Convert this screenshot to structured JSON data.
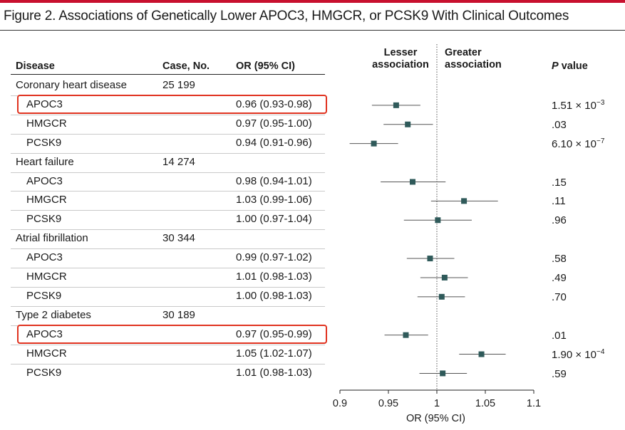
{
  "title": "Figure 2. Associations of Genetically Lower APOC3, HMGCR, or PCSK9 With Clinical Outcomes",
  "columns": {
    "disease": "Disease",
    "cases": "Case, No.",
    "or": "OR (95% CI)",
    "lesser_1": "Lesser",
    "lesser_2": "association",
    "greater_1": "Greater",
    "greater_2": "association",
    "p_value_italic": "P",
    "p_value_rest": " value"
  },
  "accent_color": "#c8102e",
  "highlight_color": "#e0321f",
  "marker_color": "#2f5a5a",
  "rows": [
    {
      "label": "Coronary heart disease",
      "cases": "25 199",
      "ci": "",
      "p_base": "",
      "p_exp": ""
    },
    {
      "label": "APOC3",
      "cases": "",
      "ci": "0.96 (0.93-0.98)",
      "p_base": "1.51 × 10",
      "p_exp": "−3"
    },
    {
      "label": "HMGCR",
      "cases": "",
      "ci": "0.97 (0.95-1.00)",
      "p_base": ".03",
      "p_exp": ""
    },
    {
      "label": "PCSK9",
      "cases": "",
      "ci": "0.94 (0.91-0.96)",
      "p_base": "6.10 × 10",
      "p_exp": "−7"
    },
    {
      "label": "Heart failure",
      "cases": "14 274",
      "ci": "",
      "p_base": "",
      "p_exp": ""
    },
    {
      "label": "APOC3",
      "cases": "",
      "ci": "0.98 (0.94-1.01)",
      "p_base": ".15",
      "p_exp": ""
    },
    {
      "label": "HMGCR",
      "cases": "",
      "ci": "1.03 (0.99-1.06)",
      "p_base": ".11",
      "p_exp": ""
    },
    {
      "label": "PCSK9",
      "cases": "",
      "ci": "1.00 (0.97-1.04)",
      "p_base": ".96",
      "p_exp": ""
    },
    {
      "label": "Atrial fibrillation",
      "cases": "30 344",
      "ci": "",
      "p_base": "",
      "p_exp": ""
    },
    {
      "label": "APOC3",
      "cases": "",
      "ci": "0.99 (0.97-1.02)",
      "p_base": ".58",
      "p_exp": ""
    },
    {
      "label": "HMGCR",
      "cases": "",
      "ci": "1.01 (0.98-1.03)",
      "p_base": ".49",
      "p_exp": ""
    },
    {
      "label": "PCSK9",
      "cases": "",
      "ci": "1.00 (0.98-1.03)",
      "p_base": ".70",
      "p_exp": ""
    },
    {
      "label": "Type 2 diabetes",
      "cases": "30 189",
      "ci": "",
      "p_base": "",
      "p_exp": ""
    },
    {
      "label": "APOC3",
      "cases": "",
      "ci": "0.97 (0.95-0.99)",
      "p_base": ".01",
      "p_exp": ""
    },
    {
      "label": "HMGCR",
      "cases": "",
      "ci": "1.05 (1.02-1.07)",
      "p_base": "1.90 × 10",
      "p_exp": "−4"
    },
    {
      "label": "PCSK9",
      "cases": "",
      "ci": "1.01 (0.98-1.03)",
      "p_base": ".59",
      "p_exp": ""
    }
  ],
  "chart_data": {
    "type": "scatter",
    "subtype": "forest plot",
    "xlabel": "OR (95% CI)",
    "xlim": [
      0.9,
      1.1
    ],
    "xticks": [
      "0.9",
      "0.95",
      "1",
      "1.05",
      "1.1"
    ],
    "reference_line": 1,
    "points": [
      {
        "row": 1,
        "or": 0.958,
        "lo": 0.933,
        "hi": 0.983
      },
      {
        "row": 2,
        "or": 0.97,
        "lo": 0.945,
        "hi": 0.996
      },
      {
        "row": 3,
        "or": 0.935,
        "lo": 0.91,
        "hi": 0.96
      },
      {
        "row": 5,
        "or": 0.975,
        "lo": 0.942,
        "hi": 1.009
      },
      {
        "row": 6,
        "or": 1.028,
        "lo": 0.994,
        "hi": 1.063
      },
      {
        "row": 7,
        "or": 1.001,
        "lo": 0.966,
        "hi": 1.036
      },
      {
        "row": 9,
        "or": 0.993,
        "lo": 0.969,
        "hi": 1.018
      },
      {
        "row": 10,
        "or": 1.008,
        "lo": 0.983,
        "hi": 1.032
      },
      {
        "row": 11,
        "or": 1.005,
        "lo": 0.98,
        "hi": 1.029
      },
      {
        "row": 13,
        "or": 0.968,
        "lo": 0.946,
        "hi": 0.991
      },
      {
        "row": 14,
        "or": 1.046,
        "lo": 1.023,
        "hi": 1.071
      },
      {
        "row": 15,
        "or": 1.006,
        "lo": 0.982,
        "hi": 1.031
      }
    ]
  }
}
